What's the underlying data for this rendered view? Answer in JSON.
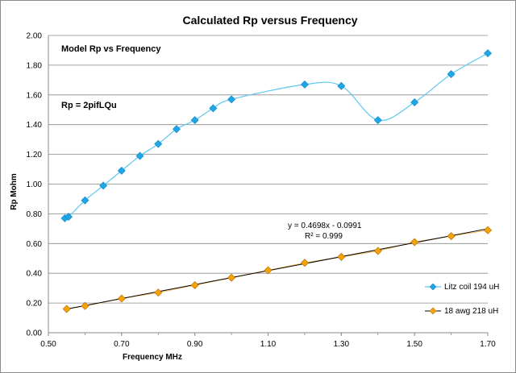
{
  "chart_data": {
    "type": "scatter",
    "title": "Calculated Rp versus Frequency",
    "xlabel": "Frequency  MHz",
    "ylabel": "Rp  Mohm",
    "xlim": [
      0.5,
      1.7
    ],
    "ylim": [
      0.0,
      2.0
    ],
    "x_ticks": [
      "0.50",
      "0.70",
      "0.90",
      "1.10",
      "1.30",
      "1.50",
      "1.70"
    ],
    "y_ticks": [
      "0.00",
      "0.20",
      "0.40",
      "0.60",
      "0.80",
      "1.00",
      "1.20",
      "1.40",
      "1.60",
      "1.80",
      "2.00"
    ],
    "grid": "horizontal",
    "legend_position": "bottom-right",
    "annotations": {
      "model": "Model Rp vs Frequency",
      "formula": "Rp = 2pifLQu",
      "trend_equation": "y = 0.4698x - 0.0991",
      "r_squared": "R² = 0.999"
    },
    "series": [
      {
        "name": "Litz coil 194 uH",
        "color": "#1ea6e6",
        "line_color": "#5ec8f0",
        "marker": "diamond",
        "x": [
          0.545,
          0.555,
          0.6,
          0.65,
          0.7,
          0.75,
          0.8,
          0.85,
          0.9,
          0.95,
          1.0,
          1.2,
          1.3,
          1.4,
          1.5,
          1.6,
          1.7
        ],
        "y": [
          0.77,
          0.78,
          0.89,
          0.99,
          1.09,
          1.19,
          1.27,
          1.37,
          1.43,
          1.51,
          1.57,
          1.67,
          1.66,
          1.43,
          1.55,
          1.74,
          1.88
        ]
      },
      {
        "name": "18 awg 218 uH",
        "color": "#f5a30a",
        "line_color": "#000000",
        "marker": "diamond",
        "x": [
          0.55,
          0.6,
          0.7,
          0.8,
          0.9,
          1.0,
          1.1,
          1.2,
          1.3,
          1.4,
          1.5,
          1.6,
          1.7
        ],
        "y": [
          0.16,
          0.18,
          0.23,
          0.27,
          0.32,
          0.37,
          0.42,
          0.47,
          0.51,
          0.55,
          0.61,
          0.65,
          0.69
        ]
      }
    ]
  }
}
